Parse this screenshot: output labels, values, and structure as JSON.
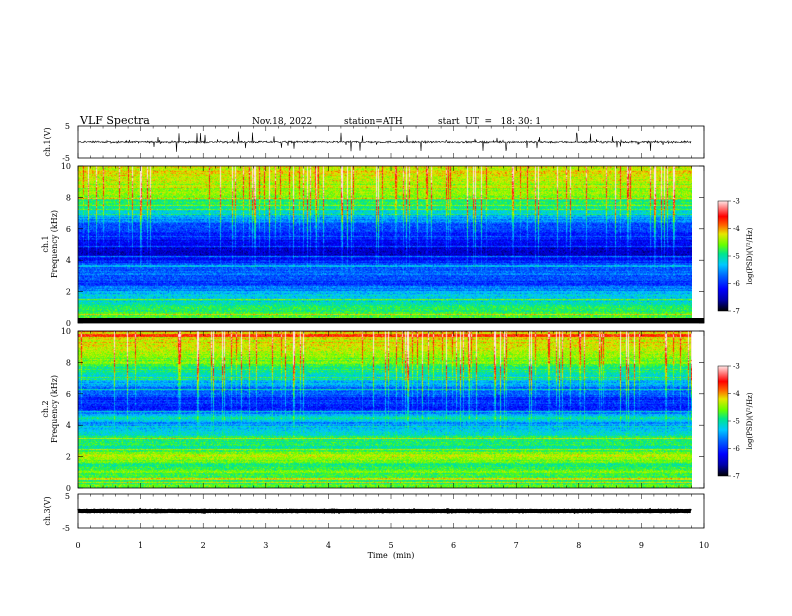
{
  "header": {
    "title": "VLF  Spectra",
    "date": "Nov.18, 2022",
    "station": "station=ATH",
    "start": "start  UT  =   18: 30: 1"
  },
  "chart_data": [
    {
      "type": "line",
      "name": "ch1-waveform",
      "ylabel": "ch.1(V)",
      "ylim": [
        -5,
        5
      ],
      "yticks": [
        "5",
        "-5"
      ],
      "xlim": [
        0,
        10
      ],
      "x_end": 9.8,
      "baseline": 0,
      "typical_amplitude": 0.6,
      "spike_amplitude_max": 3
    },
    {
      "type": "heatmap",
      "name": "ch1-spectrogram",
      "ylabel": "ch.1\nFrequency  (kHz)",
      "ylim": [
        0,
        10
      ],
      "yticks": [
        "0",
        "2",
        "4",
        "6",
        "8",
        "10"
      ],
      "xlim": [
        0,
        9.8
      ],
      "colorbar": {
        "label": "log(PSD)(V²/Hz)",
        "range": [
          -7,
          -3
        ],
        "ticks": [
          "-3",
          "-4",
          "-5",
          "-6",
          "-7"
        ]
      },
      "profile_freq_khz": [
        0,
        0.5,
        1,
        1.5,
        2,
        2.5,
        3,
        3.5,
        4,
        4.5,
        5,
        5.5,
        6,
        6.5,
        7,
        7.5,
        8,
        8.5,
        9,
        9.5,
        10
      ],
      "profile_log_psd": [
        -4.5,
        -4.7,
        -4.9,
        -5.2,
        -5.4,
        -5.9,
        -5.7,
        -5.8,
        -6.1,
        -6.5,
        -6.2,
        -6.1,
        -5.9,
        -5.6,
        -5.2,
        -4.9,
        -4.6,
        -4.4,
        -4.3,
        -4.2,
        -4.2
      ]
    },
    {
      "type": "heatmap",
      "name": "ch2-spectrogram",
      "ylabel": "ch.2\nFrequency  (kHz)",
      "ylim": [
        0,
        10
      ],
      "yticks": [
        "0",
        "2",
        "4",
        "6",
        "8",
        "10"
      ],
      "xlim": [
        0,
        9.8
      ],
      "colorbar": {
        "label": "log(PSD)(V²/Hz)",
        "range": [
          -7,
          -3
        ],
        "ticks": [
          "-3",
          "-4",
          "-5",
          "-6",
          "-7"
        ]
      },
      "profile_freq_khz": [
        0,
        0.5,
        1,
        1.5,
        2,
        2.5,
        3,
        3.5,
        4,
        4.5,
        5,
        5.5,
        6,
        6.5,
        7,
        7.5,
        8,
        8.5,
        9,
        9.5,
        10
      ],
      "profile_log_psd": [
        -4.6,
        -4.8,
        -4.6,
        -4.9,
        -4.3,
        -4.9,
        -4.8,
        -5.1,
        -5.6,
        -5.0,
        -6.0,
        -6.0,
        -5.8,
        -5.5,
        -5.2,
        -4.9,
        -4.6,
        -4.4,
        -4.3,
        -4.2,
        -4.2
      ]
    },
    {
      "type": "line",
      "name": "ch3-waveform",
      "ylabel": "ch.3(V)",
      "ylim": [
        -5,
        5
      ],
      "yticks": [
        "5",
        "-5"
      ],
      "xlim": [
        0,
        10
      ],
      "x_end": 9.8,
      "baseline": 0,
      "typical_amplitude": 0.15
    }
  ],
  "x_axis": {
    "label": "Time  (min)",
    "range": [
      0,
      10
    ],
    "ticks": [
      "0",
      "1",
      "2",
      "3",
      "4",
      "5",
      "6",
      "7",
      "8",
      "9",
      "10"
    ]
  },
  "colors": {
    "background": "#ffffff",
    "axes": "#000000",
    "colormap": [
      "#000000",
      "#0000a8",
      "#0000ff",
      "#0064ff",
      "#00c8ff",
      "#00e68c",
      "#64ff00",
      "#e6e600",
      "#ff6400",
      "#ff0000",
      "#ffc8c8"
    ]
  }
}
